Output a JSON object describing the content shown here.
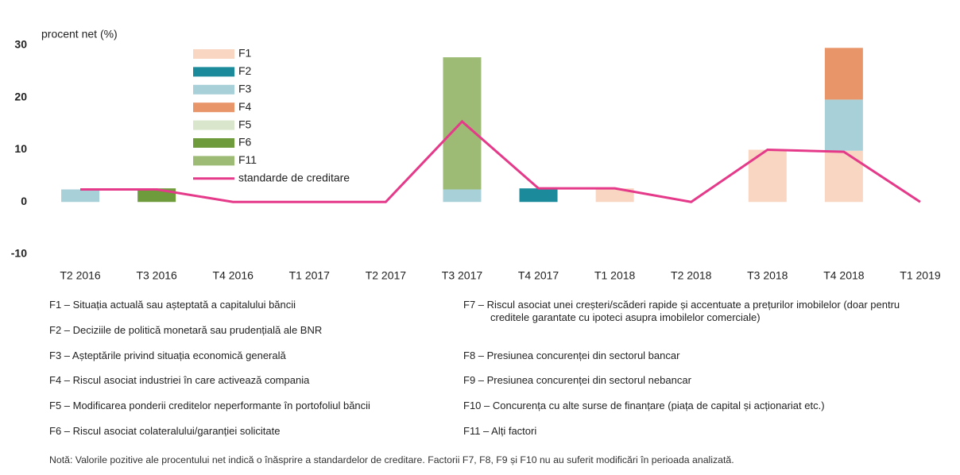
{
  "chart_data": {
    "type": "bar",
    "stacked": true,
    "y_label": "procent net (%)",
    "categories": [
      "T2 2016",
      "T3 2016",
      "T4 2016",
      "T1 2017",
      "T2 2017",
      "T3 2017",
      "T4 2017",
      "T1 2018",
      "T2 2018",
      "T3 2018",
      "T4 2018",
      "T1 2019"
    ],
    "series": [
      {
        "name": "F1",
        "color": "#f8d6c1",
        "values": [
          null,
          null,
          null,
          null,
          null,
          null,
          null,
          2.6,
          null,
          10,
          9.8,
          null
        ]
      },
      {
        "name": "F2",
        "color": "#1b8b9b",
        "values": [
          null,
          null,
          null,
          null,
          null,
          null,
          2.6,
          null,
          null,
          null,
          null,
          null
        ]
      },
      {
        "name": "F3",
        "color": "#a8d0d8",
        "values": [
          2.4,
          null,
          null,
          null,
          null,
          2.4,
          null,
          null,
          null,
          null,
          9.8,
          null
        ]
      },
      {
        "name": "F4",
        "color": "#e9956a",
        "values": [
          null,
          null,
          null,
          null,
          null,
          null,
          null,
          null,
          null,
          null,
          9.9,
          null
        ]
      },
      {
        "name": "F5",
        "color": "#d9e6cc",
        "values": [
          null,
          null,
          null,
          null,
          null,
          null,
          null,
          null,
          null,
          null,
          null,
          null
        ]
      },
      {
        "name": "F6",
        "color": "#6e9b3b",
        "values": [
          null,
          2.6,
          null,
          null,
          null,
          null,
          null,
          null,
          null,
          null,
          null,
          null
        ]
      },
      {
        "name": "F11",
        "color": "#9dbb75",
        "values": [
          null,
          null,
          null,
          null,
          null,
          25.3,
          null,
          null,
          null,
          null,
          null,
          null
        ]
      },
      {
        "name": "standarde de creditare",
        "type": "line",
        "color": "#e5398a",
        "values": [
          2.4,
          2.4,
          0,
          0,
          0,
          15.4,
          2.6,
          2.6,
          0,
          10,
          9.6,
          0
        ]
      }
    ],
    "ylim": [
      -10,
      30
    ],
    "yticks": [
      -10,
      0,
      10,
      20,
      30
    ],
    "grid": false,
    "legend": "top-left"
  },
  "factors_left": [
    "F1 – Situația actuală sau așteptată a capitalului băncii",
    "F2 – Deciziile de politică monetară sau prudențială ale BNR",
    "F3 – Așteptările privind situația economică generală",
    "F4 – Riscul asociat industriei în care activează compania",
    "F5 – Modificarea ponderii creditelor neperformante în portofoliul băncii",
    "F6 – Riscul asociat colateralului/garanției solicitate"
  ],
  "factors_right": [
    "F7 – Riscul asociat unei creșteri/scăderi rapide și accentuate a prețurilor imobilelor (doar pentru creditele garantate cu ipoteci asupra imobilelor comerciale)",
    "F8 – Presiunea concurenței din sectorul bancar",
    "F9 – Presiunea concurenței din sectorul nebancar",
    "F10 – Concurența cu alte surse de finanțare (piața de capital și acționariat etc.)",
    "F11 – Alți factori"
  ],
  "note": "Notă: Valorile pozitive ale procentului net indică o înăsprire a standardelor de creditare. Factorii F7, F8, F9 și F10 nu au suferit modificări în perioada analizată."
}
